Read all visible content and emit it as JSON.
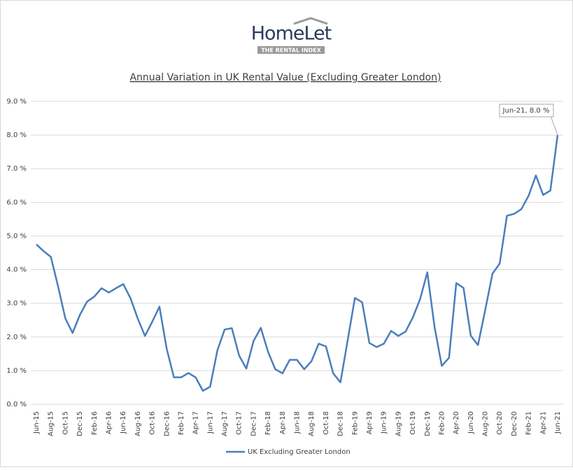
{
  "logo": {
    "brand": "HomeLet",
    "tagline": "THE RENTAL INDEX"
  },
  "chart_data": {
    "type": "line",
    "title": "Annual Variation in UK Rental Value (Excluding Greater London)",
    "categories": [
      "Jun-15",
      null,
      "Aug-15",
      null,
      "Oct-15",
      null,
      "Dec-15",
      null,
      "Feb-16",
      null,
      "Apr-16",
      null,
      "Jun-16",
      null,
      "Aug-16",
      null,
      "Oct-16",
      null,
      "Dec-16",
      null,
      "Feb-17",
      null,
      "Apr-17",
      null,
      "Jun-17",
      null,
      "Aug-17",
      null,
      "Oct-17",
      null,
      "Dec-17",
      null,
      "Feb-18",
      null,
      "Apr-18",
      null,
      "Jun-18",
      null,
      "Aug-18",
      null,
      "Oct-18",
      null,
      "Dec-18",
      null,
      "Feb-19",
      null,
      "Apr-19",
      null,
      "Jun-19",
      null,
      "Aug-19",
      null,
      "Oct-19",
      null,
      "Dec-19",
      null,
      "Feb-20",
      null,
      "Apr-20",
      null,
      "Jun-20",
      null,
      "Aug-20",
      null,
      "Oct-20",
      null,
      "Dec-20",
      null,
      "Feb-21",
      null,
      "Apr-21",
      null,
      "Jun-21"
    ],
    "series": [
      {
        "name": "UK Excluding Greater London",
        "color": "#4a7ebb",
        "values": [
          4.75,
          4.55,
          4.38,
          3.5,
          2.55,
          2.12,
          2.65,
          3.05,
          3.2,
          3.45,
          3.32,
          3.45,
          3.57,
          3.15,
          2.55,
          2.03,
          2.45,
          2.9,
          1.65,
          0.8,
          0.8,
          0.93,
          0.8,
          0.4,
          0.52,
          1.6,
          2.22,
          2.26,
          1.45,
          1.06,
          1.88,
          2.27,
          1.56,
          1.04,
          0.92,
          1.32,
          1.32,
          1.04,
          1.28,
          1.8,
          1.72,
          0.92,
          0.65,
          1.9,
          3.16,
          3.03,
          1.82,
          1.7,
          1.8,
          2.18,
          2.03,
          2.16,
          2.58,
          3.12,
          3.92,
          2.3,
          1.14,
          1.38,
          3.6,
          3.46,
          2.04,
          1.76,
          2.8,
          3.88,
          4.18,
          5.6,
          5.66,
          5.8,
          6.2,
          6.8,
          6.22,
          6.35,
          8.0
        ]
      }
    ],
    "annotation": "Jun-21, 8.0 %",
    "ylim": [
      0,
      9
    ],
    "yticks": [
      {
        "value": 0,
        "label": "0.0 %"
      },
      {
        "value": 1,
        "label": "1.0 %"
      },
      {
        "value": 2,
        "label": "2.0 %"
      },
      {
        "value": 3,
        "label": "3.0 %"
      },
      {
        "value": 4,
        "label": "4.0 %"
      },
      {
        "value": 5,
        "label": "5.0 %"
      },
      {
        "value": 6,
        "label": "6.0 %"
      },
      {
        "value": 7,
        "label": "7.0 %"
      },
      {
        "value": 8,
        "label": "8.0 %"
      },
      {
        "value": 9,
        "label": "9.0 %"
      }
    ],
    "grid": true,
    "legend": "bottom"
  }
}
